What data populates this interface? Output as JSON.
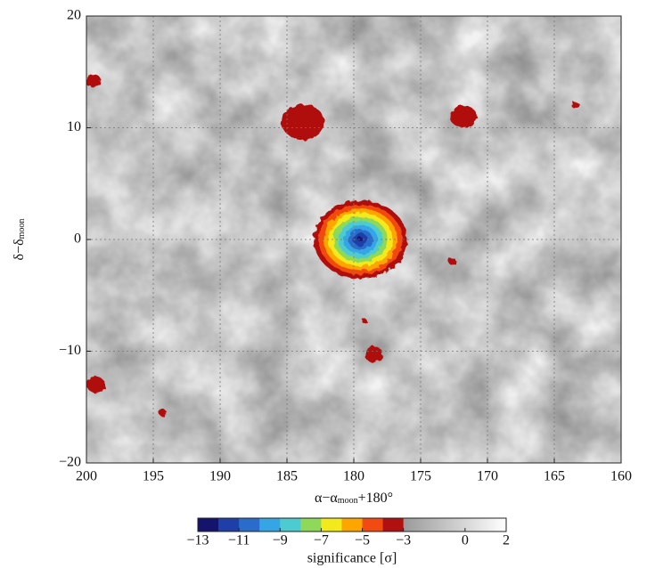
{
  "chart_data": {
    "type": "heatmap",
    "xlabel": "α−α",
    "xlabel_sub": "moon",
    "xlabel_tail": "+180°",
    "ylabel": "δ−δ",
    "ylabel_sub": "moon",
    "xlim": [
      200,
      160
    ],
    "xticks": [
      200,
      195,
      190,
      185,
      180,
      175,
      170,
      165,
      160
    ],
    "ylim": [
      -20,
      20
    ],
    "yticks": [
      {
        "value": -20,
        "label": "−20"
      },
      {
        "value": -10,
        "label": "−10"
      },
      0,
      10,
      20
    ],
    "grid": true,
    "x": [
      179.5,
      183.8,
      171.8,
      199.5,
      178.5,
      199.3,
      172.6,
      194.3,
      163.4,
      179.2
    ],
    "y": [
      0,
      10.5,
      11,
      14.2,
      -10.3,
      -13,
      -2,
      -15.5,
      12,
      -7.3
    ],
    "values": [
      -12.5,
      -4,
      -4,
      -3.5,
      -3.5,
      -3.5,
      -3.3,
      -3.3,
      -3.3,
      -3.2
    ],
    "size": [
      3.5,
      1.6,
      1.0,
      0.6,
      0.7,
      0.7,
      0.3,
      0.3,
      0.3,
      0.2
    ],
    "colorbar": {
      "label": "significance [σ]",
      "lim": [
        -13,
        2
      ],
      "colored_range": [
        -13,
        -3
      ],
      "colors": [
        "#14146e",
        "#1f3fa8",
        "#2a6ccc",
        "#35a5e6",
        "#4dcbd0",
        "#8fd95a",
        "#f2ea1a",
        "#ffa500",
        "#f24a10",
        "#b01010"
      ],
      "gray": [
        "#9a9a9a",
        "#ffffff"
      ],
      "ticks": [
        {
          "value": -13,
          "label": "−13"
        },
        {
          "value": -11,
          "label": "−11"
        },
        {
          "value": -9,
          "label": "−9"
        },
        {
          "value": -7,
          "label": "−7"
        },
        {
          "value": -5,
          "label": "−5"
        },
        {
          "value": -3,
          "label": "−3"
        },
        0,
        2
      ]
    }
  }
}
